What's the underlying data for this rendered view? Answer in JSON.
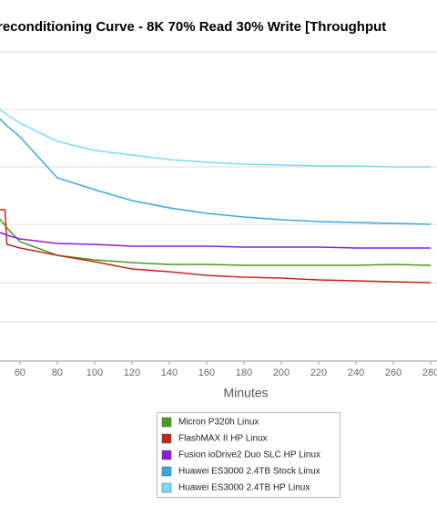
{
  "chart_data": {
    "type": "line",
    "title": "reconditioning Curve - 8K 70% Read 30% Write [Throughput",
    "x_label": "Minutes",
    "x": [
      49,
      52,
      53,
      60,
      80,
      100,
      120,
      140,
      160,
      180,
      200,
      220,
      240,
      260,
      280
    ],
    "xlim": [
      49.3,
      283.4
    ],
    "xticks": [
      60,
      80,
      100,
      120,
      140,
      160,
      180,
      200,
      220,
      240,
      260,
      280
    ],
    "ylim": [
      0,
      33.9
    ],
    "grid_lines": [
      33.9,
      27.6,
      21.3,
      15.0,
      8.6,
      4.3
    ],
    "series": [
      {
        "name": "Micron P320h Linux",
        "color": "#4a9a1e",
        "values": [
          15.6,
          14.9,
          14.6,
          13.1,
          11.6,
          11.1,
          10.8,
          10.6,
          10.6,
          10.5,
          10.5,
          10.5,
          10.5,
          10.6,
          10.5
        ]
      },
      {
        "name": "FlashMAX II HP Linux",
        "color": "#c0281c",
        "values": [
          16.6,
          16.6,
          12.8,
          12.4,
          11.6,
          10.9,
          10.1,
          9.8,
          9.4,
          9.2,
          9.1,
          8.9,
          8.8,
          8.7,
          8.6
        ]
      },
      {
        "name": "Fusion ioDrive2 Duo SLC HP Linux",
        "color": "#8a1ee0",
        "values": [
          14.1,
          13.9,
          13.8,
          13.4,
          12.9,
          12.8,
          12.6,
          12.6,
          12.6,
          12.5,
          12.5,
          12.5,
          12.4,
          12.4,
          12.4
        ]
      },
      {
        "name": "Huawei ES3000 2.4TB Stock Linux",
        "color": "#3aa8e0",
        "values": [
          26.6,
          26.0,
          25.8,
          24.6,
          20.1,
          18.8,
          17.6,
          16.8,
          16.2,
          15.8,
          15.5,
          15.3,
          15.2,
          15.1,
          15.0
        ]
      },
      {
        "name": "Huawei ES3000 2.4TB HP Linux",
        "color": "#78dcf6",
        "values": [
          27.6,
          27.2,
          27.0,
          26.1,
          24.1,
          23.1,
          22.6,
          22.1,
          21.8,
          21.6,
          21.5,
          21.4,
          21.4,
          21.3,
          21.3
        ]
      }
    ]
  }
}
